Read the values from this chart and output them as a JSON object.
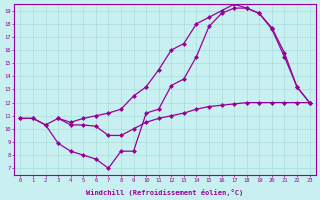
{
  "background_color": "#c8f0f0",
  "line_color": "#990099",
  "marker": "D",
  "marker_size": 2,
  "linewidth": 0.9,
  "xlabel": "Windchill (Refroidissement éolien,°C)",
  "xlim": [
    -0.5,
    23.5
  ],
  "ylim": [
    6.5,
    19.5
  ],
  "xticks": [
    0,
    1,
    2,
    3,
    4,
    5,
    6,
    7,
    8,
    9,
    10,
    11,
    12,
    13,
    14,
    15,
    16,
    17,
    18,
    19,
    20,
    21,
    22,
    23
  ],
  "yticks": [
    7,
    8,
    9,
    10,
    11,
    12,
    13,
    14,
    15,
    16,
    17,
    18,
    19
  ],
  "grid_color": "#aadddd",
  "lines": [
    {
      "x": [
        0,
        1,
        2,
        3,
        4,
        5,
        6,
        7,
        8,
        9,
        10,
        11,
        12,
        13,
        14,
        15,
        16,
        17,
        18,
        19,
        20,
        21,
        22,
        23
      ],
      "y": [
        10.8,
        10.8,
        10.3,
        10.8,
        10.3,
        10.3,
        10.2,
        9.5,
        9.5,
        10.0,
        10.5,
        10.8,
        11.0,
        11.2,
        11.5,
        11.7,
        11.8,
        11.9,
        12.0,
        12.0,
        12.0,
        12.0,
        12.0,
        12.0
      ]
    },
    {
      "x": [
        0,
        1,
        2,
        3,
        4,
        5,
        6,
        7,
        8,
        9,
        10,
        11,
        12,
        13,
        14,
        15,
        16,
        17,
        18,
        19,
        20,
        21,
        22,
        23
      ],
      "y": [
        10.8,
        10.8,
        10.3,
        8.9,
        8.3,
        8.0,
        7.7,
        7.0,
        8.3,
        8.3,
        11.2,
        11.5,
        13.3,
        13.8,
        15.5,
        17.8,
        18.8,
        19.2,
        19.2,
        18.8,
        17.6,
        15.5,
        13.2,
        12.0
      ]
    },
    {
      "x": [
        3,
        4,
        5,
        6,
        7,
        8,
        9,
        10,
        11,
        12,
        13,
        14,
        15,
        16,
        17,
        18,
        19,
        20,
        21,
        22,
        23
      ],
      "y": [
        10.8,
        10.5,
        10.8,
        11.0,
        11.2,
        11.5,
        12.5,
        13.2,
        14.5,
        16.0,
        16.5,
        18.0,
        18.5,
        19.0,
        19.5,
        19.2,
        18.8,
        17.7,
        15.8,
        13.2,
        12.0
      ]
    }
  ]
}
